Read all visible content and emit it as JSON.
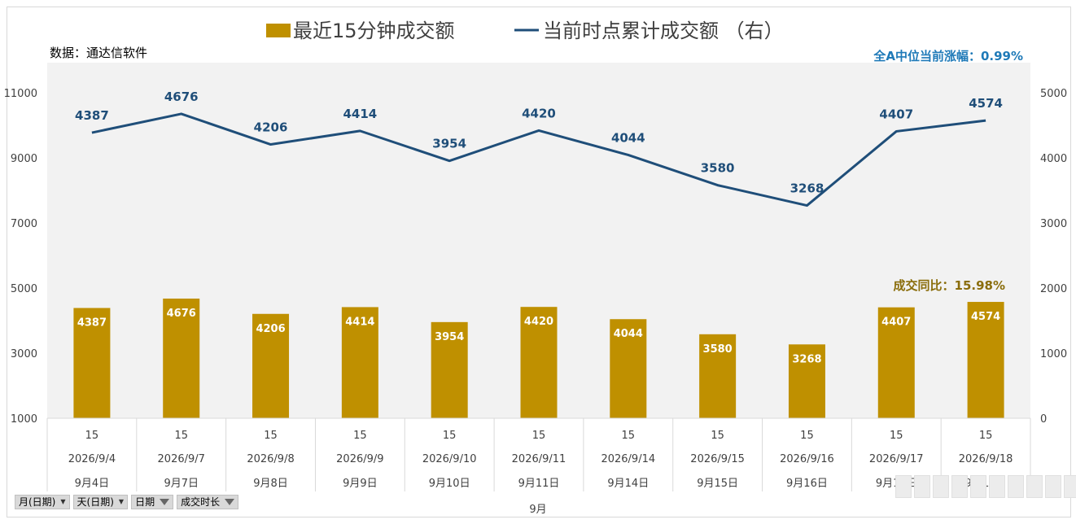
{
  "legend": {
    "bar_label": "最近15分钟成交额",
    "line_label": "当前时点累计成交额 （右）"
  },
  "source": "数据：通达信软件",
  "annotations": {
    "median_change": "全A中位当前涨幅：0.99%",
    "yoy": "成交同比：15.98%"
  },
  "chart_data": {
    "type": "bar",
    "categories": [
      "2026/9/4",
      "2026/9/7",
      "2026/9/8",
      "2026/9/9",
      "2026/9/10",
      "2026/9/11",
      "2026/9/14",
      "2026/9/15",
      "2026/9/16",
      "2026/9/17",
      "2026/9/18"
    ],
    "cat_top": [
      "15",
      "15",
      "15",
      "15",
      "15",
      "15",
      "15",
      "15",
      "15",
      "15",
      "15"
    ],
    "cat_bottom": [
      "9月4日",
      "9月7日",
      "9月8日",
      "9月9日",
      "9月10日",
      "9月11日",
      "9月14日",
      "9月15日",
      "9月16日",
      "9月17日",
      "9月18日"
    ],
    "group_label": "9月",
    "series": [
      {
        "name": "最近15分钟成交额",
        "type": "bar",
        "axis": "left",
        "color": "#bf9000",
        "values": [
          4387,
          4676,
          4206,
          4414,
          3954,
          4420,
          4044,
          3580,
          3268,
          4407,
          4574
        ]
      },
      {
        "name": "当前时点累计成交额 （右）",
        "type": "line",
        "axis": "right",
        "color": "#1f4e79",
        "values": [
          4387,
          4676,
          4206,
          4414,
          3954,
          4420,
          4044,
          3580,
          3268,
          4407,
          4574
        ]
      }
    ],
    "left_axis": {
      "ylim": [
        1000,
        12000
      ],
      "ticks": [
        "1000",
        "3000",
        "5000",
        "7000",
        "9000",
        "11000"
      ]
    },
    "right_axis": {
      "ylim": [
        0,
        5500
      ],
      "ticks": [
        "0",
        "1000",
        "2000",
        "3000",
        "4000",
        "5000"
      ]
    },
    "legend_position": "top",
    "grid": false
  },
  "filters": [
    {
      "label": "月(日期)",
      "icon": "dropdown-arrow-icon"
    },
    {
      "label": "天(日期)",
      "icon": "dropdown-arrow-icon"
    },
    {
      "label": "日期",
      "icon": "filter-funnel-icon"
    },
    {
      "label": "成交时长",
      "icon": "filter-funnel-icon"
    }
  ]
}
